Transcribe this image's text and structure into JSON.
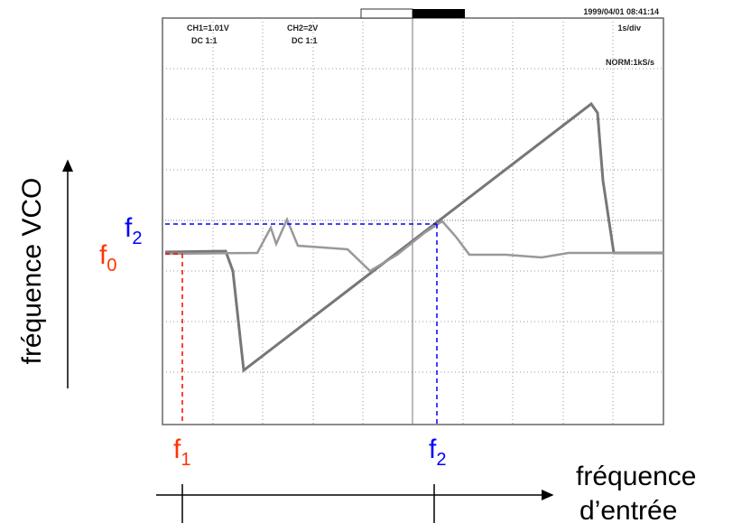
{
  "scope": {
    "timestamp": "1999/04/01 08:41:14",
    "ch1": "CH1=1.01V",
    "ch1_coupling": "DC 1:1",
    "ch2": "CH2=2V",
    "ch2_coupling": "DC 1:1",
    "timebase": "1s/div",
    "mode": "NORM:1kS/s"
  },
  "y_axis": {
    "label": "fréquence VCO",
    "f0": {
      "letter": "f",
      "index": "0"
    },
    "f2": {
      "letter": "f",
      "index": "2"
    }
  },
  "x_axis": {
    "label_line1": "fréquence",
    "label_line2": "d’entrée",
    "f1": {
      "letter": "f",
      "index": "1"
    },
    "f2": {
      "letter": "f",
      "index": "2"
    }
  }
}
